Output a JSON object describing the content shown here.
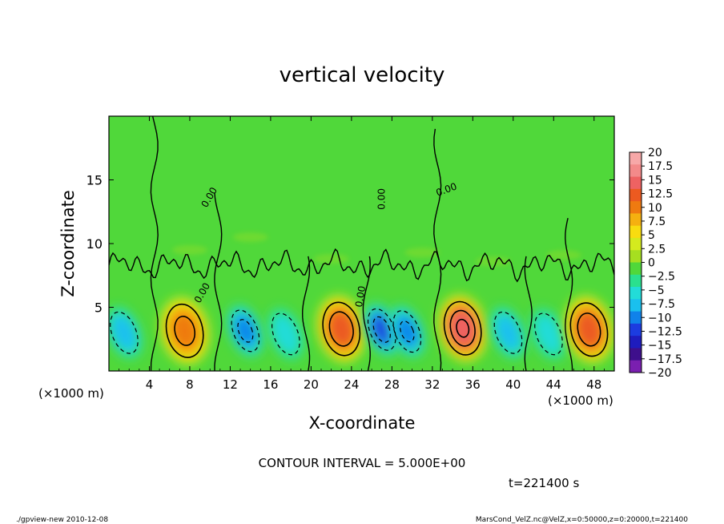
{
  "chart_data": {
    "type": "heatmap",
    "title": "vertical velocity",
    "xlabel": "X-coordinate",
    "ylabel": "Z-coordinate",
    "x_unit_left": "(×1000 m)",
    "x_unit_right": "(×1000 m)",
    "y_unit": "(×1000 m)",
    "xlim": [
      0,
      50
    ],
    "ylim": [
      0,
      20
    ],
    "x_ticks": [
      4,
      8,
      12,
      16,
      20,
      24,
      28,
      32,
      36,
      40,
      44,
      48
    ],
    "y_ticks": [
      5,
      10,
      15
    ],
    "colorbar": {
      "range": [
        -20,
        20
      ],
      "labels": [
        "20",
        "17.5",
        "15",
        "12.5",
        "10",
        "7.5",
        "5",
        "2.5",
        "0",
        "-2.5",
        "-5",
        "-7.5",
        "-10",
        "-12.5",
        "-15",
        "-17.5",
        "-20"
      ],
      "colors": [
        "#f7a8a8",
        "#f38a8a",
        "#ee6262",
        "#ec5a20",
        "#ef7a10",
        "#f5b010",
        "#f8dc10",
        "#d4ea1e",
        "#a6df20",
        "#50d83a",
        "#2ae08e",
        "#22dcd8",
        "#1ac0ee",
        "#1082ea",
        "#1c3ce0",
        "#1e1cbe",
        "#3e0f8c",
        "#7a1fb0"
      ]
    },
    "contour_interval": "CONTOUR INTERVAL = 5.000E+00",
    "contour_labels": [
      "0.00",
      "0.00",
      "0.00",
      "0.00",
      "0.00"
    ],
    "cells": [
      {
        "x": 1.5,
        "sign": -1,
        "amp": 8
      },
      {
        "x": 7.5,
        "sign": 1,
        "amp": 11
      },
      {
        "x": 13.5,
        "sign": -1,
        "amp": 11
      },
      {
        "x": 17.5,
        "sign": -1,
        "amp": 6
      },
      {
        "x": 23.0,
        "sign": 1,
        "amp": 14
      },
      {
        "x": 27.0,
        "sign": -1,
        "amp": 13
      },
      {
        "x": 29.5,
        "sign": -1,
        "amp": 10
      },
      {
        "x": 35.0,
        "sign": 1,
        "amp": 15
      },
      {
        "x": 39.5,
        "sign": -1,
        "amp": 8
      },
      {
        "x": 43.5,
        "sign": -1,
        "amp": 6
      },
      {
        "x": 47.5,
        "sign": 1,
        "amp": 13
      }
    ],
    "time_label": "t=221400 s"
  },
  "footer": {
    "left": "./gpview-new  2010-12-08",
    "right": "MarsCond_VelZ.nc@VelZ,x=0:50000,z=0:20000,t=221400"
  }
}
